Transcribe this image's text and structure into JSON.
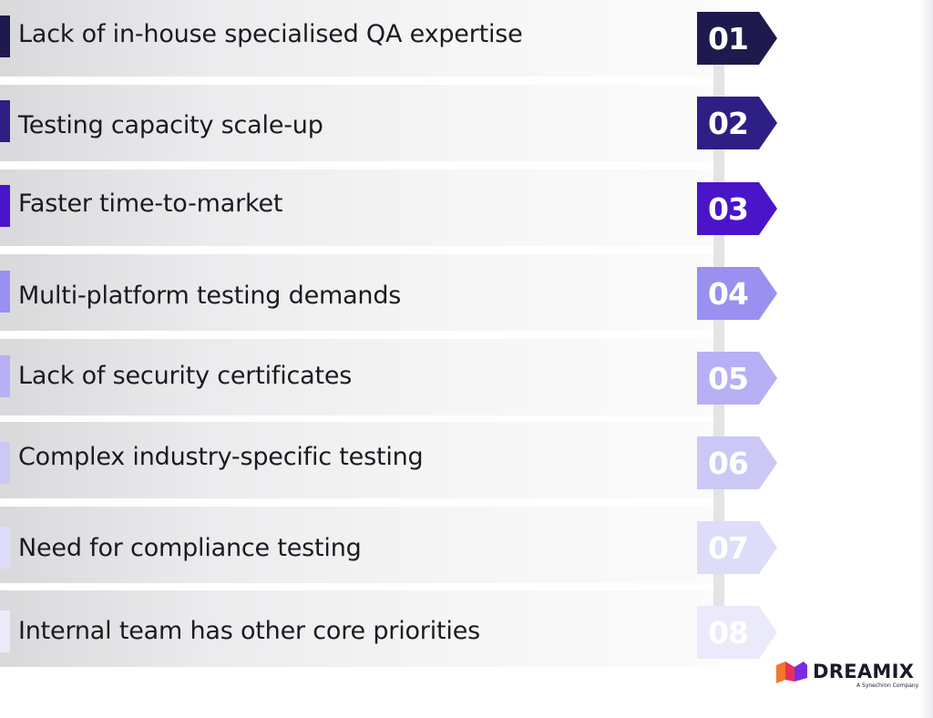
{
  "items": [
    {
      "number": "01",
      "label": "Lack of in-house specialised QA expertise",
      "color": "#1e1a4d"
    },
    {
      "number": "02",
      "label": "Testing capacity scale-up",
      "color": "#2e1f85"
    },
    {
      "number": "03",
      "label": "Faster time-to-market",
      "color": "#4a15c9"
    },
    {
      "number": "04",
      "label": "Multi-platform testing demands",
      "color": "#9a90f0"
    },
    {
      "number": "05",
      "label": "Lack of security certificates",
      "color": "#b7b0f4"
    },
    {
      "number": "06",
      "label": "Complex industry-specific testing",
      "color": "#ccc8f6"
    },
    {
      "number": "07",
      "label": "Need for compliance testing",
      "color": "#deddf9"
    },
    {
      "number": "08",
      "label": "Internal team has other core priorities",
      "color": "#ebeafb"
    }
  ],
  "brand": {
    "name": "DREAMIX",
    "tagline": "A Synechron Company",
    "icon": "dreamix-logo-mark",
    "colors": {
      "orange": "#f2782a",
      "red": "#e6315a",
      "purple": "#7a2be2",
      "navy": "#1a1a2e"
    }
  }
}
